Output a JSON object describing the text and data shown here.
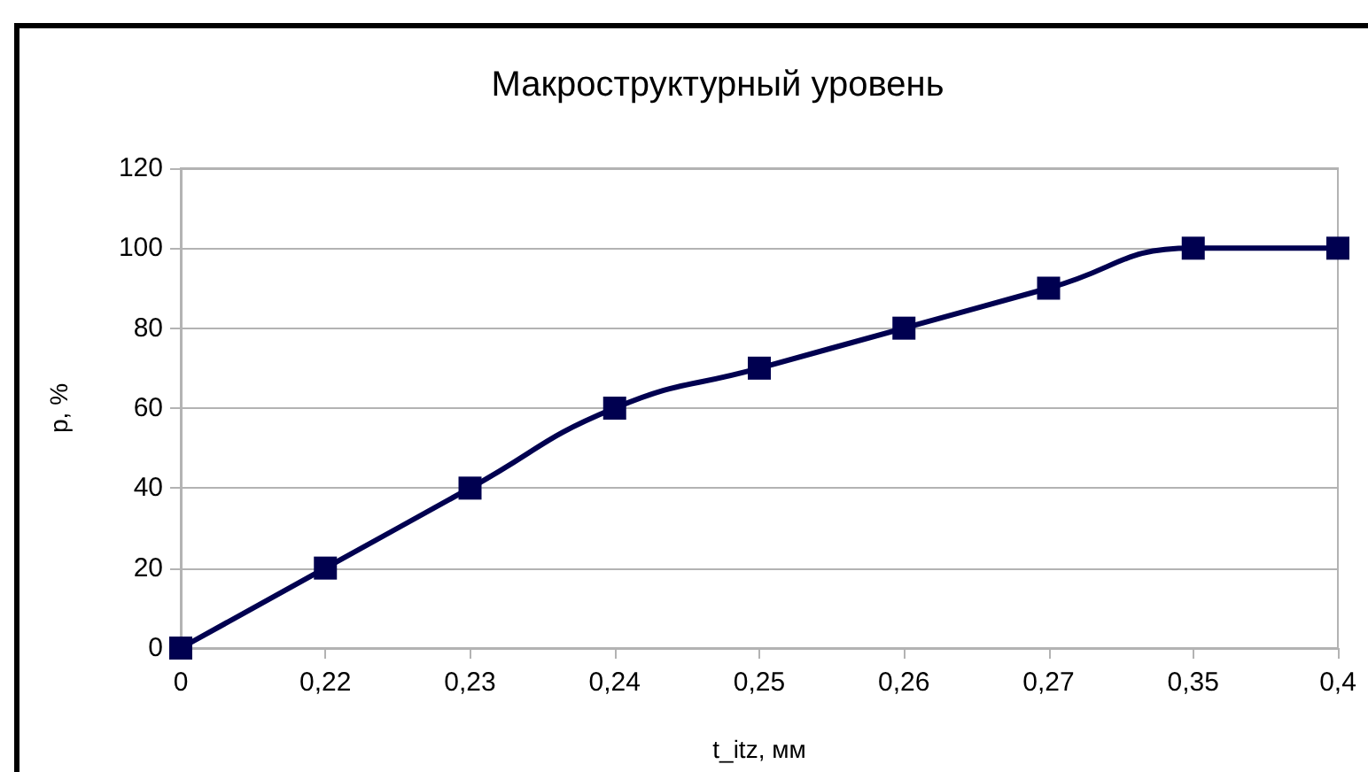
{
  "chart_data": {
    "type": "line",
    "title": "Макроструктурный уровень",
    "xlabel": "t_itz, мм",
    "ylabel": "p, %",
    "categories": [
      "0",
      "0,22",
      "0,23",
      "0,24",
      "0,25",
      "0,26",
      "0,27",
      "0,35",
      "0,4"
    ],
    "values": [
      0,
      20,
      40,
      60,
      70,
      80,
      90,
      100,
      100
    ],
    "color": "#000050",
    "ylim": [
      0,
      120
    ],
    "yticks": [
      0,
      20,
      40,
      60,
      80,
      100,
      120
    ],
    "grid": "y",
    "marker": "square",
    "line_style": "solid"
  }
}
